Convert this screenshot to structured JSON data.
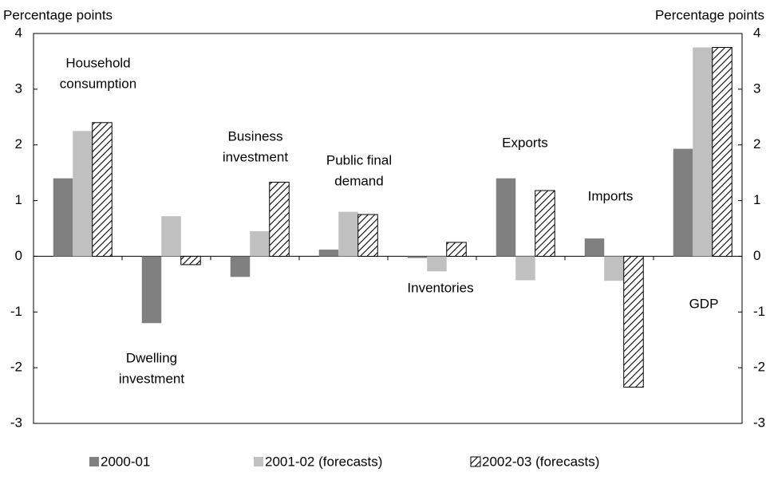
{
  "chart_data": {
    "type": "bar",
    "y_label_left": "Percentage points",
    "y_label_right": "Percentage points",
    "categories": [
      [
        "Household",
        "consumption"
      ],
      [
        "Dwelling",
        "investment"
      ],
      [
        "Business",
        "investment"
      ],
      [
        "Public final",
        "demand"
      ],
      [
        "Inventories"
      ],
      [
        "Exports"
      ],
      [
        "Imports"
      ],
      [
        "GDP"
      ]
    ],
    "series": [
      {
        "name": "2000-01",
        "color": "#808080",
        "values": [
          1.4,
          -1.2,
          -0.37,
          0.12,
          -0.03,
          1.4,
          0.32,
          1.93
        ]
      },
      {
        "name": "2001-02 (forecasts)",
        "color": "#c0c0c0",
        "values": [
          2.25,
          0.72,
          0.45,
          0.8,
          -0.27,
          -0.43,
          -0.44,
          3.75
        ]
      },
      {
        "name": "2002-03 (forecasts)",
        "color": "#000000",
        "hatch": true,
        "values": [
          2.4,
          -0.15,
          1.33,
          0.75,
          0.25,
          1.18,
          -2.35,
          3.75
        ]
      }
    ],
    "ylim": [
      -3,
      4
    ],
    "yticks": [
      -3,
      -2,
      -1,
      0,
      1,
      2,
      3,
      4
    ],
    "y2lim": [
      -3,
      4
    ],
    "y2ticks": [
      -3,
      -2,
      -1,
      0,
      1,
      2,
      3,
      4
    ],
    "grid": false
  }
}
